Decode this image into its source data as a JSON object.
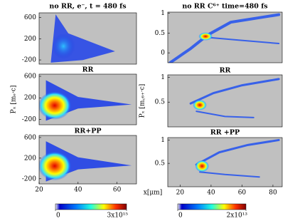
{
  "chart_data": [
    {
      "type": "heatmap",
      "title": "no RR, e⁻, t = 480 fs",
      "xlim": [
        20,
        70
      ],
      "ylim": [
        -280,
        690
      ],
      "yticks": [
        -200,
        200,
        600
      ]
    },
    {
      "type": "heatmap",
      "title": "no RR C⁶⁺ time=480 fs",
      "xlim": [
        12,
        86
      ],
      "ylim": [
        -0.25,
        1.03
      ],
      "yticks": [
        0,
        0.5,
        1
      ]
    },
    {
      "type": "heatmap",
      "title": "RR",
      "ylabel": "Pₓ [mₑ·c]",
      "xlim": [
        20,
        70
      ],
      "ylim": [
        -300,
        640
      ],
      "yticks": [
        -200,
        200,
        600
      ]
    },
    {
      "type": "heatmap",
      "title": "RR",
      "ylabel": "Pₓ [m꜀₆₊·c]",
      "xlim": [
        12,
        86
      ],
      "ylim": [
        0,
        1.05
      ],
      "yticks": [
        0.5,
        1
      ]
    },
    {
      "type": "heatmap",
      "title": "RR+PP",
      "xlim": [
        20,
        70
      ],
      "ylim": [
        -300,
        640
      ],
      "yticks": [
        -200,
        200,
        600
      ],
      "xticks": [
        20,
        40,
        60
      ]
    },
    {
      "type": "heatmap",
      "title": "RR +PP",
      "xlim": [
        12,
        86
      ],
      "ylim": [
        0,
        1.05
      ],
      "yticks": [
        0.5,
        1
      ],
      "xticks": [
        20,
        40,
        60,
        80
      ]
    },
    {
      "type": "colorbar",
      "xlabel": "x[μm]",
      "clim": [
        0,
        3000000000000000.0
      ],
      "cticks": [
        0,
        {
          "value": 3000000000000000.0,
          "label": "3x10¹⁵"
        }
      ]
    },
    {
      "type": "colorbar",
      "clim": [
        0,
        20000000000000.0
      ],
      "cticks": [
        0,
        {
          "value": 20000000000000.0,
          "label": "2x10¹³"
        }
      ]
    }
  ]
}
